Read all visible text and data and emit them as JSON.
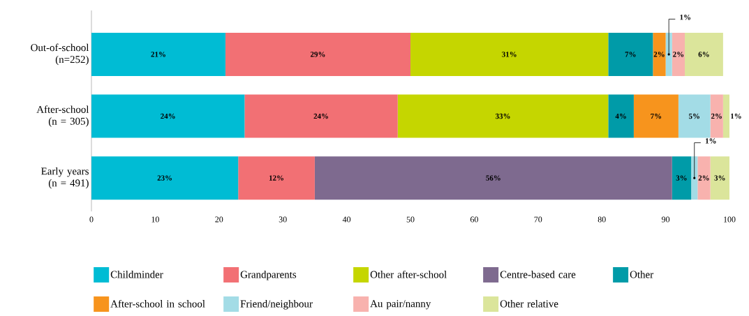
{
  "chart_data": {
    "type": "bar",
    "orientation": "horizontal",
    "stacked": true,
    "legend": "bottom",
    "categories": [
      "Out-of-school (n=252)",
      "After-school (n = 305)",
      "Early years (n = 491)"
    ],
    "xlim": [
      0,
      100
    ],
    "xticks": [
      0,
      10,
      20,
      30,
      40,
      50,
      60,
      70,
      80,
      90,
      100
    ],
    "series": [
      {
        "name": "Childminder",
        "color": "#00bcd4",
        "values": [
          21,
          24,
          23
        ],
        "value_labels": [
          "21%",
          "24%",
          "23%"
        ]
      },
      {
        "name": "Grandparents",
        "color": "#f27074",
        "values": [
          29,
          24,
          12
        ],
        "value_labels": [
          "29%",
          "24%",
          "12%"
        ]
      },
      {
        "name": "Other after-school",
        "color": "#c5d600",
        "values": [
          31,
          33,
          null
        ],
        "value_labels": [
          "31%",
          "33%",
          null
        ]
      },
      {
        "name": "Centre-based care",
        "color": "#7e6a8f",
        "values": [
          null,
          null,
          56
        ],
        "value_labels": [
          null,
          null,
          "56%"
        ]
      },
      {
        "name": "Other",
        "color": "#009ba8",
        "values": [
          7,
          4,
          3
        ],
        "value_labels": [
          "7%",
          "4%",
          "3%"
        ]
      },
      {
        "name": "After-school in school",
        "color": "#f7941d",
        "values": [
          2,
          7,
          null
        ],
        "value_labels": [
          "2%",
          "7%",
          null
        ]
      },
      {
        "name": "Friend/neighbour",
        "color": "#a3dce6",
        "values": [
          1,
          5,
          1
        ],
        "value_labels": [
          "1%",
          "5%",
          "1%"
        ]
      },
      {
        "name": "Au pair/nanny",
        "color": "#f8b2ae",
        "values": [
          2,
          2,
          2
        ],
        "value_labels": [
          "2%",
          "2%",
          "2%"
        ]
      },
      {
        "name": "Other relative",
        "color": "#dbe59b",
        "values": [
          6,
          1,
          3
        ],
        "value_labels": [
          "6%",
          "1%",
          "3%"
        ]
      }
    ]
  }
}
